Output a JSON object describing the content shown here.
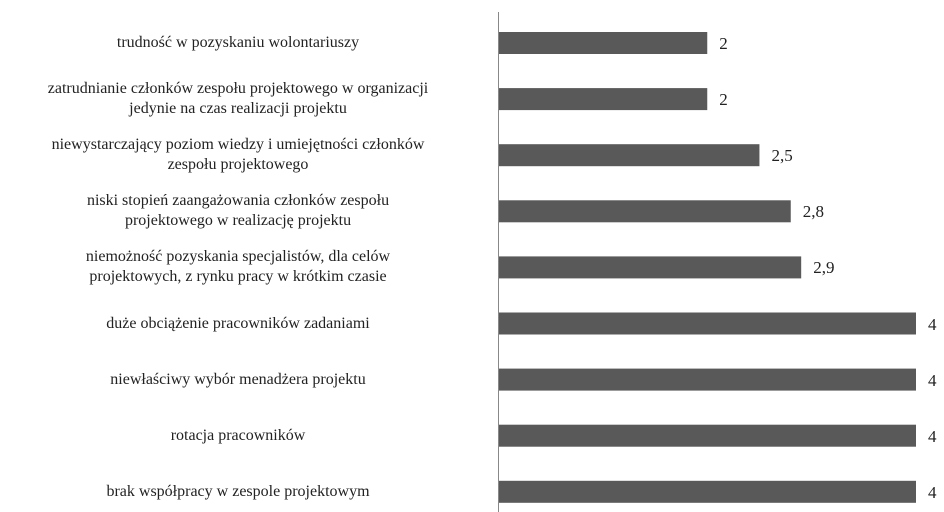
{
  "chart_data": {
    "type": "bar",
    "orientation": "horizontal",
    "categories": [
      "trudność w pozyskaniu wolontariuszy",
      "zatrudnianie członków zespołu projektowego w organizacji\njedynie na czas realizacji projektu",
      "niewystarczający poziom wiedzy i umiejętności członków\nzespołu projektowego",
      "niski stopień zaangażowania członków zespołu\nprojektowego w realizację projektu",
      "niemożność pozyskania specjalistów, dla celów\nprojektowych, z rynku pracy w krótkim czasie",
      "duże obciążenie pracowników zadaniami",
      "niewłaściwy wybór menadżera projektu",
      "rotacja pracowników",
      "brak współpracy w zespole projektowym"
    ],
    "values": [
      2,
      2,
      2.5,
      2.8,
      2.9,
      4,
      4,
      4,
      4
    ],
    "value_labels": [
      "2",
      "2",
      "2,5",
      "2,8",
      "2,9",
      "4",
      "4",
      "4",
      "4"
    ],
    "color": "#595959"
  }
}
